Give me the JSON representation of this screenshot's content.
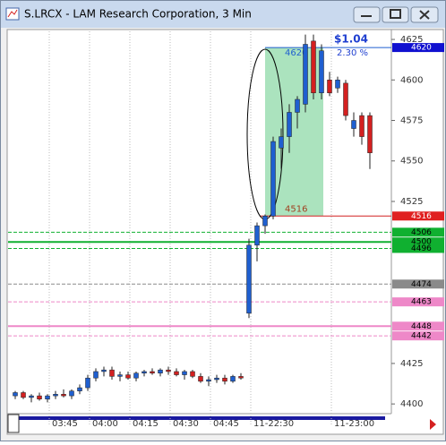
{
  "window": {
    "title": "S.LRCX - LAM Research Corporation, 3 Min"
  },
  "chart_data": {
    "type": "candlestick",
    "categories": [
      null,
      null,
      null,
      null,
      "03:45",
      null,
      null,
      null,
      null,
      "04:00",
      null,
      null,
      null,
      null,
      "04:15",
      null,
      null,
      null,
      null,
      "04:30",
      null,
      null,
      null,
      null,
      "04:45",
      null,
      null,
      null,
      null,
      "11-22:30",
      null,
      null,
      null,
      null,
      null,
      null,
      null,
      null,
      null,
      "11-23:00",
      null,
      null,
      null,
      null,
      null
    ],
    "open": [
      4405,
      4407,
      4404,
      4405,
      4403,
      4405,
      4406,
      4405,
      4408,
      4410,
      4416,
      4420,
      4421,
      4417,
      4418,
      4416,
      4419,
      4420,
      4419,
      4421,
      4420,
      4418,
      4420,
      4417,
      4414,
      4415,
      4416,
      4414,
      4417,
      4456,
      4498,
      4510,
      4516,
      4558,
      4565,
      4580,
      4585,
      4624,
      4592,
      4600,
      4595,
      4598,
      4570,
      4578,
      4578
    ],
    "high": [
      4408,
      4408,
      4406,
      4407,
      4406,
      4408,
      4409,
      4409,
      4412,
      4418,
      4422,
      4423,
      4423,
      4420,
      4420,
      4420,
      4421,
      4422,
      4422,
      4423,
      4422,
      4421,
      4421,
      4419,
      4417,
      4418,
      4418,
      4418,
      4419,
      4502,
      4512,
      4517,
      4565,
      4570,
      4585,
      4590,
      4628,
      4628,
      4622,
      4605,
      4602,
      4600,
      4580,
      4580,
      4580
    ],
    "low": [
      4403,
      4403,
      4401,
      4402,
      4401,
      4403,
      4404,
      4403,
      4406,
      4408,
      4414,
      4417,
      4415,
      4414,
      4415,
      4414,
      4417,
      4418,
      4417,
      4418,
      4417,
      4415,
      4416,
      4413,
      4411,
      4413,
      4412,
      4413,
      4415,
      4453,
      4488,
      4505,
      4514,
      4545,
      4555,
      4570,
      4580,
      4588,
      4588,
      4590,
      4592,
      4575,
      4565,
      4560,
      4545
    ],
    "close": [
      4407,
      4404,
      4405,
      4403,
      4405,
      4406,
      4405,
      4408,
      4410,
      4416,
      4420,
      4421,
      4417,
      4418,
      4416,
      4419,
      4420,
      4419,
      4421,
      4420,
      4418,
      4420,
      4417,
      4414,
      4415,
      4416,
      4414,
      4417,
      4416,
      4498,
      4510,
      4516,
      4562,
      4565,
      4580,
      4588,
      4622,
      4592,
      4618,
      4592,
      4600,
      4578,
      4575,
      4565,
      4555
    ],
    "up_color": "#1f5fd0",
    "down_color": "#d42020",
    "ylim": [
      4394,
      4630
    ],
    "yticks": [
      4400,
      4425,
      4525,
      4550,
      4575,
      4600,
      4625
    ],
    "levels": [
      {
        "value": 4506,
        "color": "#10b030",
        "style": "dashed"
      },
      {
        "value": 4500,
        "color": "#10b030",
        "style": "solid"
      },
      {
        "value": 4496,
        "color": "#10b030",
        "style": "dashed"
      },
      {
        "value": 4474,
        "color": "#8a8a8a",
        "style": "dashed"
      },
      {
        "value": 4463,
        "color": "#ee88c8",
        "style": "dashed"
      },
      {
        "value": 4448,
        "color": "#ee88c8",
        "style": "solid"
      },
      {
        "value": 4442,
        "color": "#ee88c8",
        "style": "dashed"
      }
    ],
    "measure": {
      "low": 4516,
      "high": 4620,
      "change_label": "$1.04",
      "percent_label": "2.30 %",
      "color": "#8fd9a8"
    }
  }
}
